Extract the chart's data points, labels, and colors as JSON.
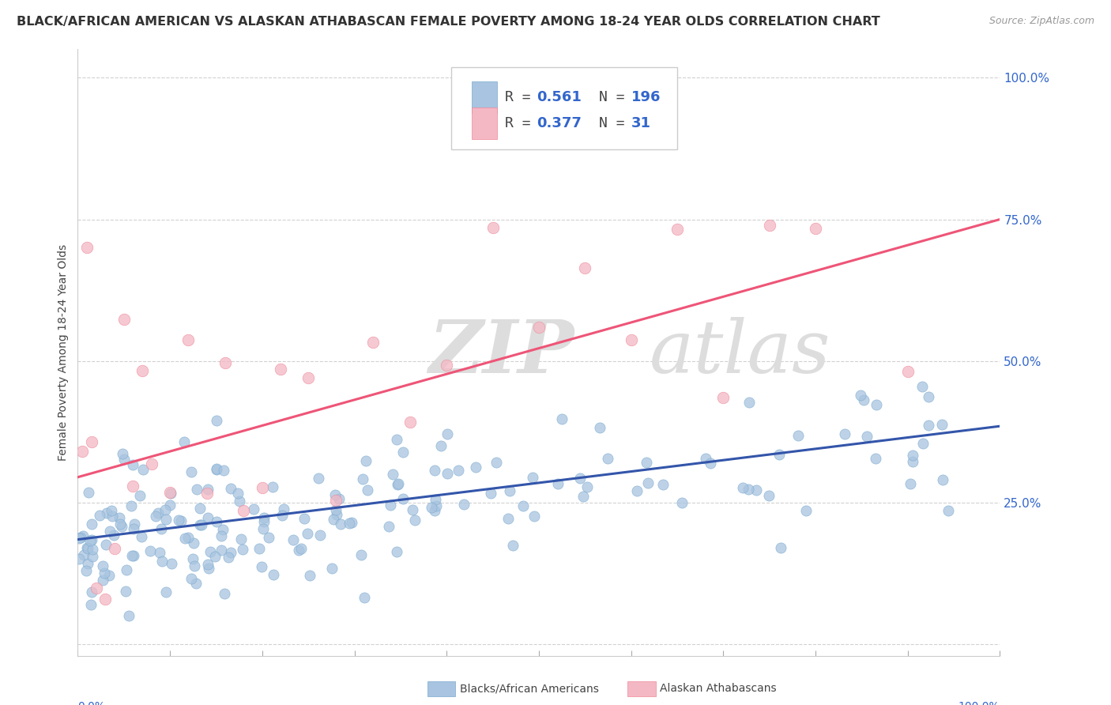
{
  "title": "BLACK/AFRICAN AMERICAN VS ALASKAN ATHABASCAN FEMALE POVERTY AMONG 18-24 YEAR OLDS CORRELATION CHART",
  "source": "Source: ZipAtlas.com",
  "ylabel": "Female Poverty Among 18-24 Year Olds",
  "watermark_zip": "ZIP",
  "watermark_atlas": "atlas",
  "blue_R": 0.561,
  "blue_N": 196,
  "pink_R": 0.377,
  "pink_N": 31,
  "blue_color": "#A8C4E0",
  "pink_color": "#F4B8C4",
  "blue_edge_color": "#7BAACF",
  "pink_edge_color": "#EE8899",
  "blue_line_color": "#3355AA",
  "pink_line_color": "#EE5577",
  "legend_label_blue": "Blacks/African Americans",
  "legend_label_pink": "Alaskan Athabascans",
  "number_color": "#3366CC",
  "text_color": "#444444",
  "ytick_color": "#3366CC",
  "xlim": [
    0.0,
    1.0
  ],
  "ylim": [
    -0.02,
    1.05
  ],
  "yticks": [
    0.0,
    0.25,
    0.5,
    0.75,
    1.0
  ],
  "ytick_labels": [
    "",
    "25.0%",
    "50.0%",
    "75.0%",
    "100.0%"
  ],
  "background_color": "#FFFFFF",
  "grid_color": "#CCCCCC",
  "title_color": "#333333",
  "watermark_color": "#DDDDDD",
  "source_color": "#999999"
}
